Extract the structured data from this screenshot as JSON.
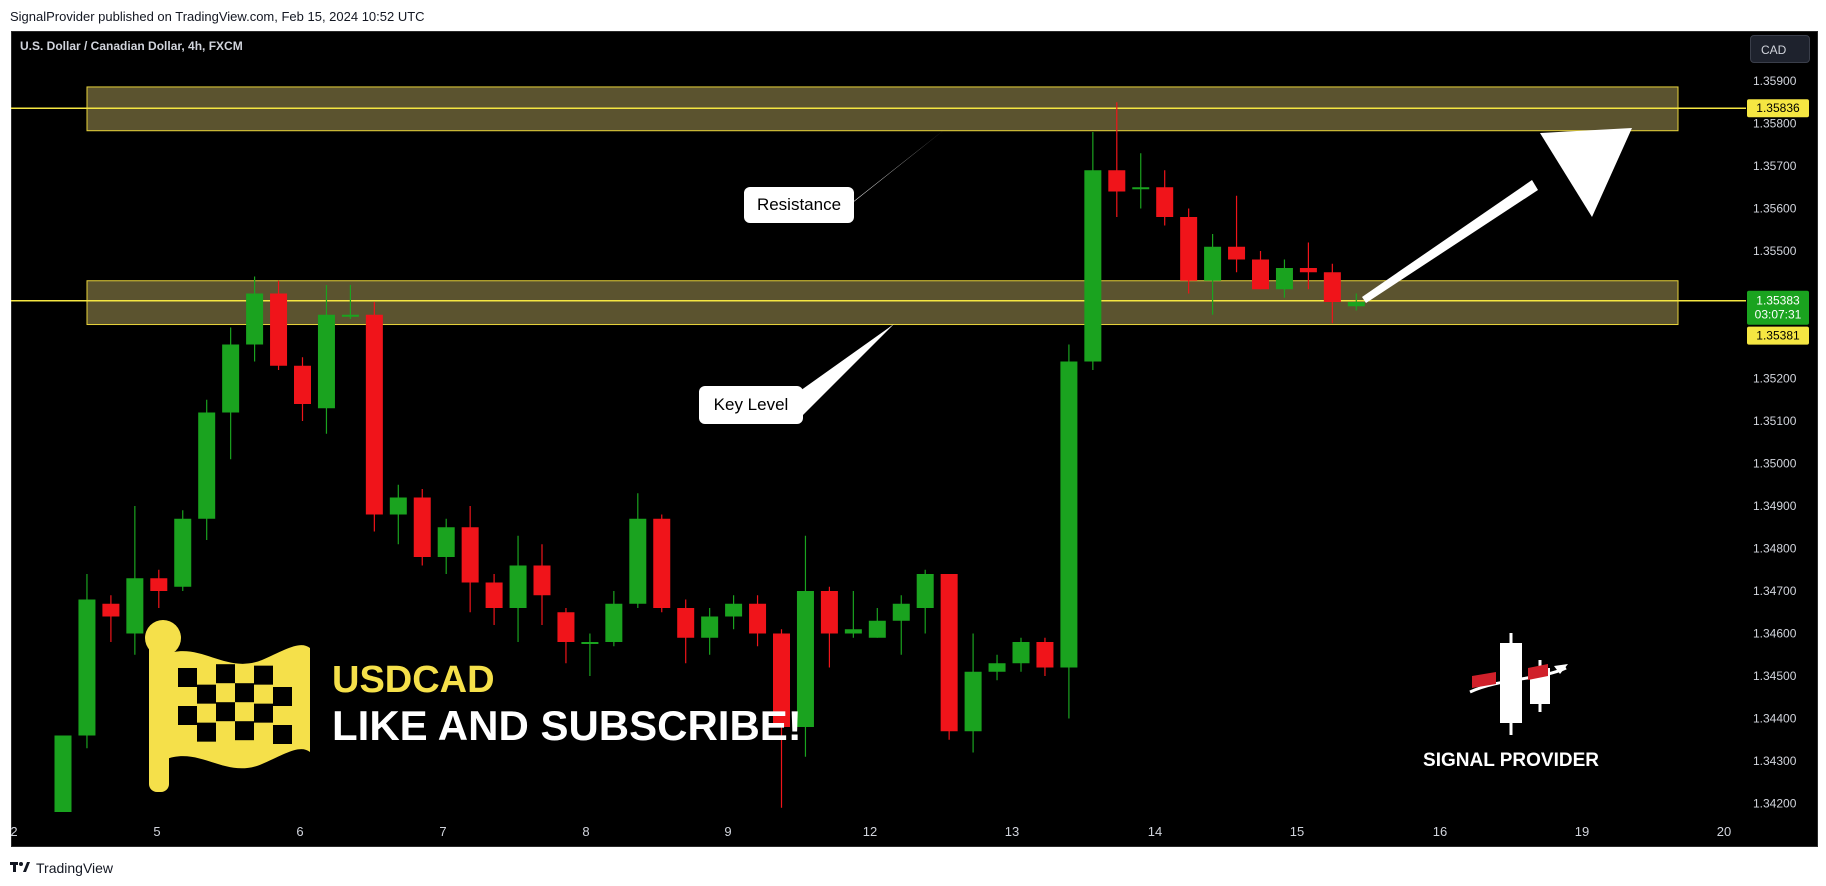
{
  "header": {
    "published_by": "SignalProvider published on TradingView.com, Feb 15, 2024 10:52 UTC"
  },
  "symbol_title": "U.S. Dollar / Canadian Dollar, 4h, FXCM",
  "currency_button": "CAD",
  "footer": {
    "brand": "TradingView"
  },
  "overlay": {
    "title": "USDCAD",
    "subtitle": "LIKE AND SUBSCRIBE!",
    "brand_label": "SIGNAL PROVIDER",
    "annotations": [
      "Resistance",
      "Key Level"
    ]
  },
  "colors": {
    "bull": "#1aa31f",
    "bear": "#f0141a",
    "zone_fill": "#6b6237",
    "zone_border": "#e8d33a",
    "level_line": "#f5e642",
    "accent_yellow": "#f5e04a"
  },
  "chart_data": {
    "type": "candlestick",
    "ylim": [
      1.3416,
      1.35985
    ],
    "y_ticks": [
      "1.35900",
      "1.35800",
      "1.35700",
      "1.35600",
      "1.35500",
      "1.35200",
      "1.35100",
      "1.35000",
      "1.34900",
      "1.34800",
      "1.34700",
      "1.34600",
      "1.34500",
      "1.34400",
      "1.34300",
      "1.34200"
    ],
    "x_ticks": [
      "2",
      "5",
      "6",
      "7",
      "8",
      "9",
      "12",
      "13",
      "14",
      "15",
      "16",
      "19",
      "20"
    ],
    "price_labels": [
      {
        "text": "1.35836"
      },
      {
        "text": "1.35383",
        "sub": "03:07:31"
      },
      {
        "text": "1.35381"
      }
    ],
    "zones": [
      {
        "label": "Resistance",
        "low": 1.35783,
        "high": 1.35886,
        "line": 1.35836
      },
      {
        "label": "Key Level",
        "low": 1.35327,
        "high": 1.3543,
        "line": 1.35383
      }
    ],
    "candles": [
      [
        1.3418,
        1.3436,
        1.3418,
        1.3436
      ],
      [
        1.3436,
        1.3468,
        1.3433,
        1.3474
      ],
      [
        1.3467,
        1.3464,
        1.3458,
        1.3469
      ],
      [
        1.346,
        1.3473,
        1.3455,
        1.349
      ],
      [
        1.3473,
        1.347,
        1.3466,
        1.3475
      ],
      [
        1.3471,
        1.3487,
        1.347,
        1.3489
      ],
      [
        1.3487,
        1.3512,
        1.3482,
        1.3515
      ],
      [
        1.3512,
        1.3528,
        1.3501,
        1.3532
      ],
      [
        1.3528,
        1.354,
        1.3524,
        1.3544
      ],
      [
        1.354,
        1.3523,
        1.3522,
        1.3543
      ],
      [
        1.3523,
        1.3514,
        1.351,
        1.3525
      ],
      [
        1.3513,
        1.3535,
        1.3507,
        1.3542
      ],
      [
        1.3535,
        1.3535,
        1.3534,
        1.3542
      ],
      [
        1.3535,
        1.3488,
        1.3484,
        1.3538
      ],
      [
        1.3488,
        1.3492,
        1.3481,
        1.3495
      ],
      [
        1.3492,
        1.3478,
        1.3476,
        1.3494
      ],
      [
        1.3478,
        1.3485,
        1.3474,
        1.3487
      ],
      [
        1.3485,
        1.3472,
        1.3465,
        1.349
      ],
      [
        1.3472,
        1.3466,
        1.3462,
        1.3474
      ],
      [
        1.3466,
        1.3476,
        1.3458,
        1.3483
      ],
      [
        1.3476,
        1.3469,
        1.3462,
        1.3481
      ],
      [
        1.3465,
        1.3458,
        1.3453,
        1.3466
      ],
      [
        1.3458,
        1.3458,
        1.345,
        1.346
      ],
      [
        1.3458,
        1.3467,
        1.3457,
        1.347
      ],
      [
        1.3467,
        1.3487,
        1.3466,
        1.3493
      ],
      [
        1.3487,
        1.3466,
        1.3465,
        1.3488
      ],
      [
        1.3466,
        1.3459,
        1.3453,
        1.3468
      ],
      [
        1.3459,
        1.3464,
        1.3455,
        1.3466
      ],
      [
        1.3464,
        1.3467,
        1.3461,
        1.3469
      ],
      [
        1.3467,
        1.346,
        1.3457,
        1.3469
      ],
      [
        1.346,
        1.3438,
        1.3419,
        1.3461
      ],
      [
        1.3438,
        1.347,
        1.3431,
        1.3483
      ],
      [
        1.347,
        1.346,
        1.3452,
        1.3471
      ],
      [
        1.346,
        1.3461,
        1.3459,
        1.347
      ],
      [
        1.3459,
        1.3463,
        1.3459,
        1.3466
      ],
      [
        1.3463,
        1.3467,
        1.3455,
        1.3469
      ],
      [
        1.3466,
        1.3474,
        1.346,
        1.3475
      ],
      [
        1.3474,
        1.3437,
        1.3435,
        1.3474
      ],
      [
        1.3437,
        1.3451,
        1.3432,
        1.346
      ],
      [
        1.3451,
        1.3453,
        1.3449,
        1.3455
      ],
      [
        1.3453,
        1.3458,
        1.3451,
        1.3459
      ],
      [
        1.3458,
        1.3452,
        1.345,
        1.3459
      ],
      [
        1.3452,
        1.3524,
        1.344,
        1.3528
      ],
      [
        1.3524,
        1.3569,
        1.3522,
        1.3578
      ],
      [
        1.3569,
        1.3564,
        1.3558,
        1.3585
      ],
      [
        1.3565,
        1.3565,
        1.356,
        1.3573
      ],
      [
        1.3565,
        1.3558,
        1.3556,
        1.3569
      ],
      [
        1.3558,
        1.3543,
        1.354,
        1.356
      ],
      [
        1.3543,
        1.3551,
        1.3535,
        1.3554
      ],
      [
        1.3551,
        1.3548,
        1.3545,
        1.3563
      ],
      [
        1.3548,
        1.3541,
        1.3541,
        1.355
      ],
      [
        1.3541,
        1.3546,
        1.3539,
        1.3548
      ],
      [
        1.3546,
        1.3545,
        1.3541,
        1.3552
      ],
      [
        1.3545,
        1.3538,
        1.3533,
        1.3547
      ],
      [
        1.3537,
        1.3538,
        1.3536,
        1.354
      ]
    ]
  }
}
